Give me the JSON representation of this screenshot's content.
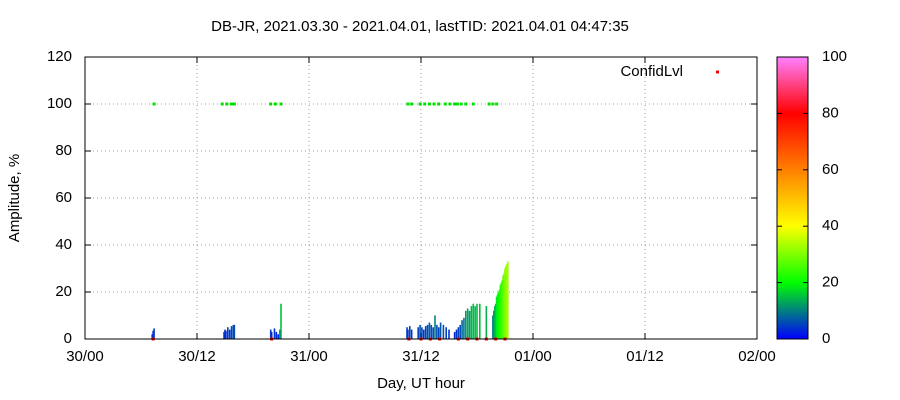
{
  "chart_data": {
    "type": "impulse",
    "title": "DB-JR, 2021.03.30 - 2021.04.01, lastTID: 2021.04.01 04:47:35",
    "xlabel": "Day, UT hour",
    "ylabel": "Amplitude, %",
    "xlim": [
      0,
      72
    ],
    "xticks": [
      {
        "value": 0,
        "label": "30/00"
      },
      {
        "value": 12,
        "label": "30/12"
      },
      {
        "value": 24,
        "label": "31/00"
      },
      {
        "value": 36,
        "label": "31/12"
      },
      {
        "value": 48,
        "label": "01/00"
      },
      {
        "value": 60,
        "label": "01/12"
      },
      {
        "value": 72,
        "label": "02/00"
      }
    ],
    "ylim": [
      0,
      120
    ],
    "yticks": [
      0,
      20,
      40,
      60,
      80,
      100,
      120
    ],
    "grid": true,
    "palette": [
      "#0000ff",
      "#00ff00",
      "#ffff00",
      "#ff8000",
      "#ff0000",
      "#ff80ff"
    ],
    "clim": [
      0,
      100
    ],
    "cticks": [
      0,
      20,
      40,
      60,
      80,
      100
    ],
    "legend": "top-right",
    "x": [
      7.2,
      7.3,
      7.4,
      14.9,
      15.0,
      15.1,
      15.3,
      15.5,
      15.7,
      15.9,
      16.0,
      19.9,
      20.0,
      20.3,
      20.5,
      20.7,
      20.9,
      21.0,
      34.5,
      34.6,
      34.8,
      35.0,
      35.7,
      35.9,
      36.1,
      36.3,
      36.5,
      36.7,
      36.9,
      37.1,
      37.3,
      37.5,
      37.7,
      37.9,
      38.1,
      38.4,
      38.7,
      39.0,
      39.6,
      39.8,
      40.0,
      40.2,
      40.4,
      40.6,
      40.8,
      41.0,
      41.2,
      41.4,
      41.6,
      41.8,
      42.0,
      42.3,
      43.0,
      43.7,
      43.8,
      43.9,
      44.0,
      44.1,
      44.2,
      44.3,
      44.4,
      44.5,
      44.6,
      44.7,
      44.8,
      44.9,
      45.0,
      45.1,
      45.2,
      45.3
    ],
    "values": [
      2,
      3.5,
      4.5,
      3,
      4,
      3.5,
      5,
      4,
      5.5,
      6,
      6,
      4,
      3,
      4.5,
      3,
      2,
      4,
      15,
      5,
      4,
      5.5,
      4,
      5,
      6,
      5,
      4,
      5.5,
      6,
      7,
      6,
      5,
      10,
      6,
      5,
      7,
      6,
      5,
      4,
      3,
      4,
      5,
      6,
      8,
      9,
      12,
      13,
      12,
      14,
      15,
      14,
      15,
      15,
      14,
      10,
      12,
      14,
      15,
      18,
      19,
      20,
      21,
      23,
      24,
      25,
      27,
      28,
      30,
      31,
      32,
      33
    ],
    "series": [
      {
        "name": "ConfidLvl",
        "color": "#ff0000",
        "x": [
          7.4,
          14.7,
          15.2,
          15.7,
          16.0,
          19.9,
          20.4,
          21.0,
          34.6,
          35.0,
          35.9,
          36.4,
          36.9,
          37.4,
          37.9,
          38.6,
          39.1,
          39.6,
          39.9,
          40.3,
          40.8,
          41.6,
          43.3,
          43.7,
          44.1,
          7.3,
          20.0,
          34.7,
          36.0,
          37.0,
          38.0,
          40.0,
          41.0,
          42.0,
          43.0,
          44.0,
          45.0
        ],
        "values": [
          100,
          100,
          100,
          100,
          100,
          100,
          100,
          100,
          100,
          100,
          100,
          100,
          100,
          100,
          100,
          100,
          100,
          100,
          100,
          100,
          100,
          100,
          100,
          100,
          100,
          0,
          0,
          0,
          0,
          0,
          0,
          0,
          0,
          0,
          0,
          0,
          0
        ],
        "colors": [
          "#00e000",
          "#00e000",
          "#00e000",
          "#00e000",
          "#00e000",
          "#00e000",
          "#00e000",
          "#00e000",
          "#00e000",
          "#00e000",
          "#00e000",
          "#00e000",
          "#00e000",
          "#00e000",
          "#00e000",
          "#00e000",
          "#00e000",
          "#00e000",
          "#00e000",
          "#00e000",
          "#00e000",
          "#00e000",
          "#00e000",
          "#00e000",
          "#00e000",
          "#ff0000",
          "#ff0000",
          "#ff0000",
          "#ff0000",
          "#ff0000",
          "#ff0000",
          "#ff0000",
          "#ff0000",
          "#ff0000",
          "#ff0000",
          "#ff0000",
          "#ff0000"
        ]
      }
    ]
  }
}
